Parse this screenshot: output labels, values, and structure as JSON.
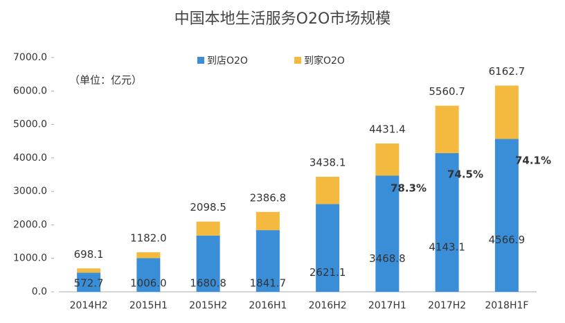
{
  "chart_data": {
    "type": "stacked_bar",
    "title": "中国本地生活服务O2O市场规模",
    "unit_label": "（单位：亿元）",
    "categories": [
      "2014H2",
      "2015H1",
      "2015H2",
      "2016H1",
      "2016H2",
      "2017H1",
      "2017H2",
      "2018H1F"
    ],
    "series": [
      {
        "name": "到店O2O",
        "color": "#3a8ed8",
        "values": [
          572.7,
          1006.0,
          1680.8,
          1841.7,
          2621.1,
          3468.8,
          4143.1,
          4566.9
        ],
        "value_labels": [
          "572.7",
          "1006.0",
          "1680.8",
          "1841.7",
          "2621.1",
          "3468.8",
          "4143.1",
          "4566.9"
        ]
      },
      {
        "name": "到家O2O",
        "color": "#f4b93f",
        "values": [
          125.4,
          176.0,
          417.7,
          545.1,
          817.0,
          962.6,
          1417.6,
          1595.8
        ]
      }
    ],
    "totals": [
      698.1,
      1182.0,
      2098.5,
      2386.8,
      3438.1,
      4431.4,
      5560.7,
      6162.7
    ],
    "total_labels": [
      "698.1",
      "1182.0",
      "2098.5",
      "2386.8",
      "3438.1",
      "4431.4",
      "5560.7",
      "6162.7"
    ],
    "annotations": [
      {
        "text": "78.3%"
      },
      {
        "text": "74.5%"
      },
      {
        "text": "74.1%"
      }
    ],
    "ylim": [
      0,
      7000
    ],
    "yticks": [
      {
        "value": 0,
        "label": "0.0"
      },
      {
        "value": 1000,
        "label": "1000.0"
      },
      {
        "value": 2000,
        "label": "2000.0"
      },
      {
        "value": 3000,
        "label": "3000.0"
      },
      {
        "value": 4000,
        "label": "4000.0"
      },
      {
        "value": 5000,
        "label": "5000.0"
      },
      {
        "value": 6000,
        "label": "6000.0"
      },
      {
        "value": 7000,
        "label": "7000.0"
      }
    ],
    "legend": "top"
  }
}
